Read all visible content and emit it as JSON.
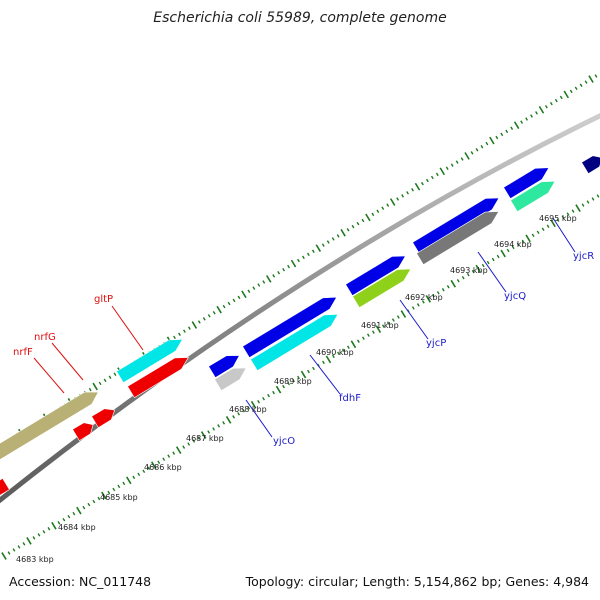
{
  "title": "Escherichia coli 55989, complete genome",
  "footer": {
    "accession": "Accession: NC_011748",
    "summary": "Topology: circular; Length: 5,154,862 bp; Genes: 4,984"
  },
  "map": {
    "colors": {
      "backbone": "#8a8a8a",
      "tick": "#1d7a1d",
      "forward": "#0000e6",
      "forward_dark": "#000080",
      "reverse_red": "#ee0000",
      "cyan": "#00e5e5",
      "khaki": "#b8b074",
      "gray": "#787878",
      "lightgray": "#c8c8c8",
      "yellowgreen": "#8fd11a",
      "mint": "#2ee8a0"
    },
    "kbp_labels": [
      {
        "label": "4683 kbp"
      },
      {
        "label": "4684 kbp"
      },
      {
        "label": "4685 kbp"
      },
      {
        "label": "4686 kbp"
      },
      {
        "label": "4687 kbp"
      },
      {
        "label": "4688 kbp"
      },
      {
        "label": "4689 kbp"
      },
      {
        "label": "4690 kbp"
      },
      {
        "label": "4691 kbp"
      },
      {
        "label": "4692 kbp"
      },
      {
        "label": "4693 kbp"
      },
      {
        "label": "4694 kbp"
      },
      {
        "label": "4695 kbp"
      }
    ],
    "gene_labels": [
      {
        "name": "gltP",
        "color": "red"
      },
      {
        "name": "nrfG",
        "color": "red"
      },
      {
        "name": "nrfF",
        "color": "red"
      },
      {
        "name": "yjcO",
        "color": "blue"
      },
      {
        "name": "fdhF",
        "color": "blue"
      },
      {
        "name": "yjcP",
        "color": "blue"
      },
      {
        "name": "yjcQ",
        "color": "blue"
      },
      {
        "name": "yjcR",
        "color": "blue"
      }
    ]
  }
}
